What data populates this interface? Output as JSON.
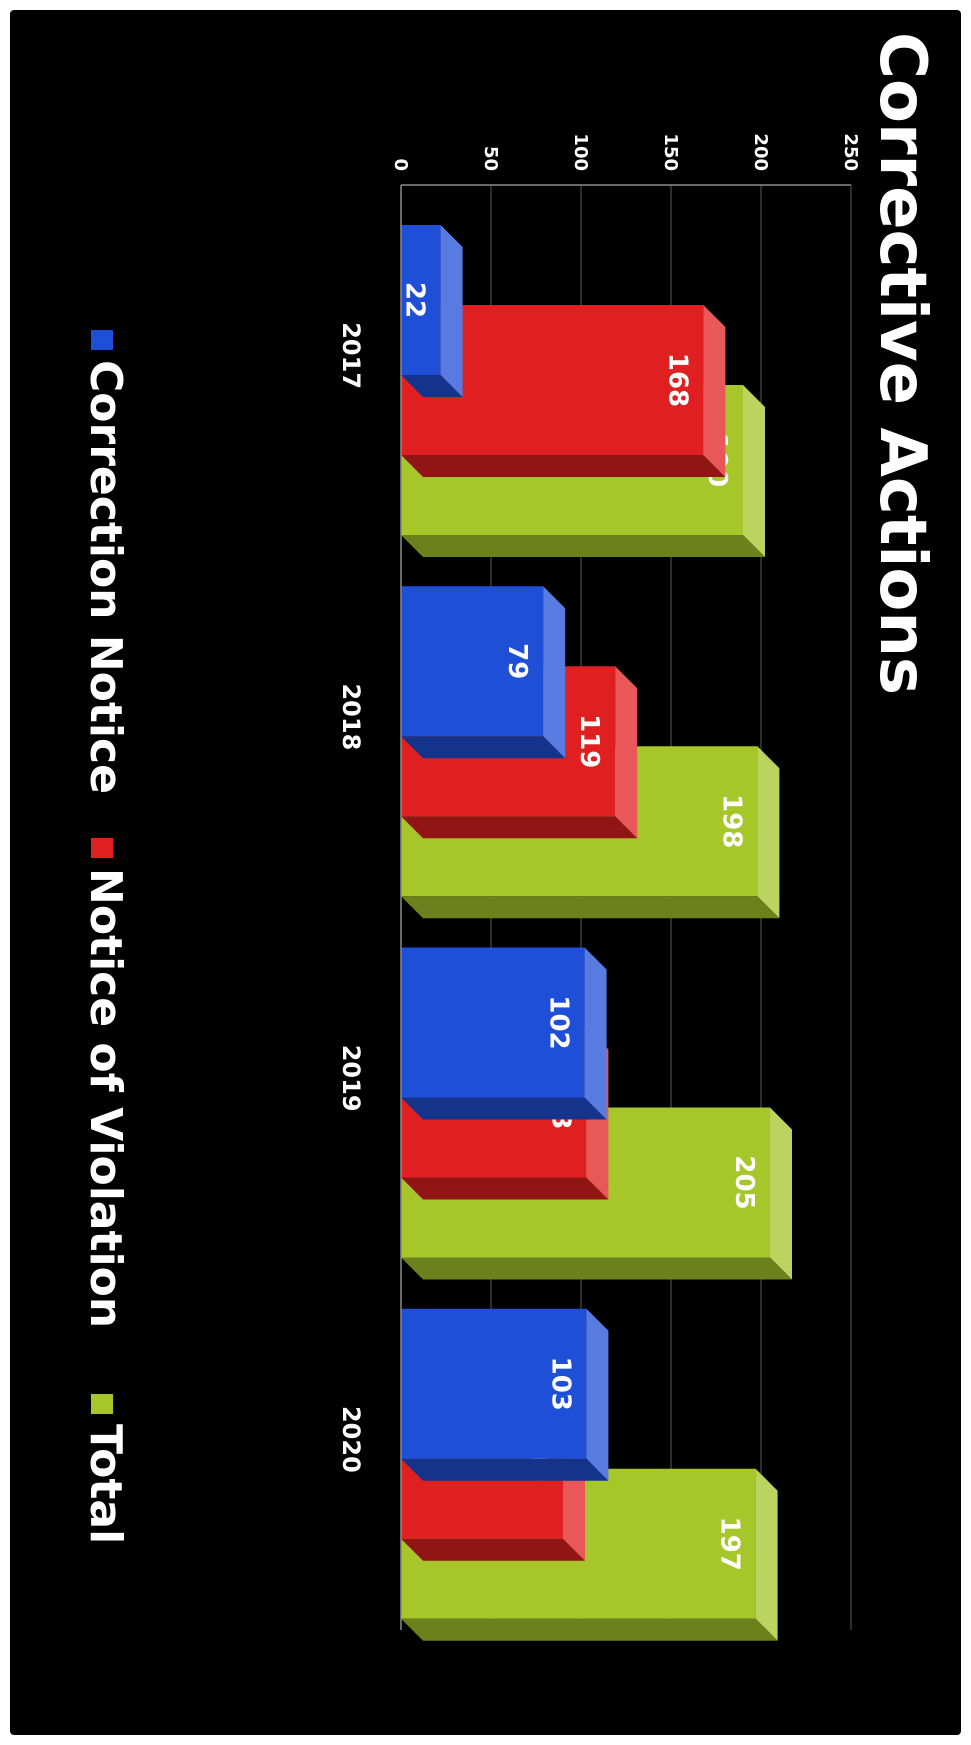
{
  "title": "Corrective Actions",
  "chart_data": {
    "type": "bar",
    "title": "Corrective Actions",
    "categories": [
      "2017",
      "2018",
      "2019",
      "2020"
    ],
    "series": [
      {
        "name": "Correction Notice",
        "values": [
          22,
          79,
          102,
          103
        ]
      },
      {
        "name": "Notice of Violation",
        "values": [
          168,
          119,
          103,
          90
        ]
      },
      {
        "name": "Total",
        "values": [
          190,
          198,
          205,
          197
        ]
      }
    ],
    "ylim": [
      0,
      250
    ],
    "yticks": [
      0,
      50,
      100,
      150,
      200,
      250
    ],
    "grid": true,
    "legend_position": "bottom",
    "orientation": "rotated 90 degrees (page in landscape)",
    "colors": {
      "Correction Notice": "#1f4fd6",
      "Notice of Violation": "#e02020",
      "Total": "#a6c62a",
      "background": "#000000",
      "text": "#ffffff"
    }
  }
}
